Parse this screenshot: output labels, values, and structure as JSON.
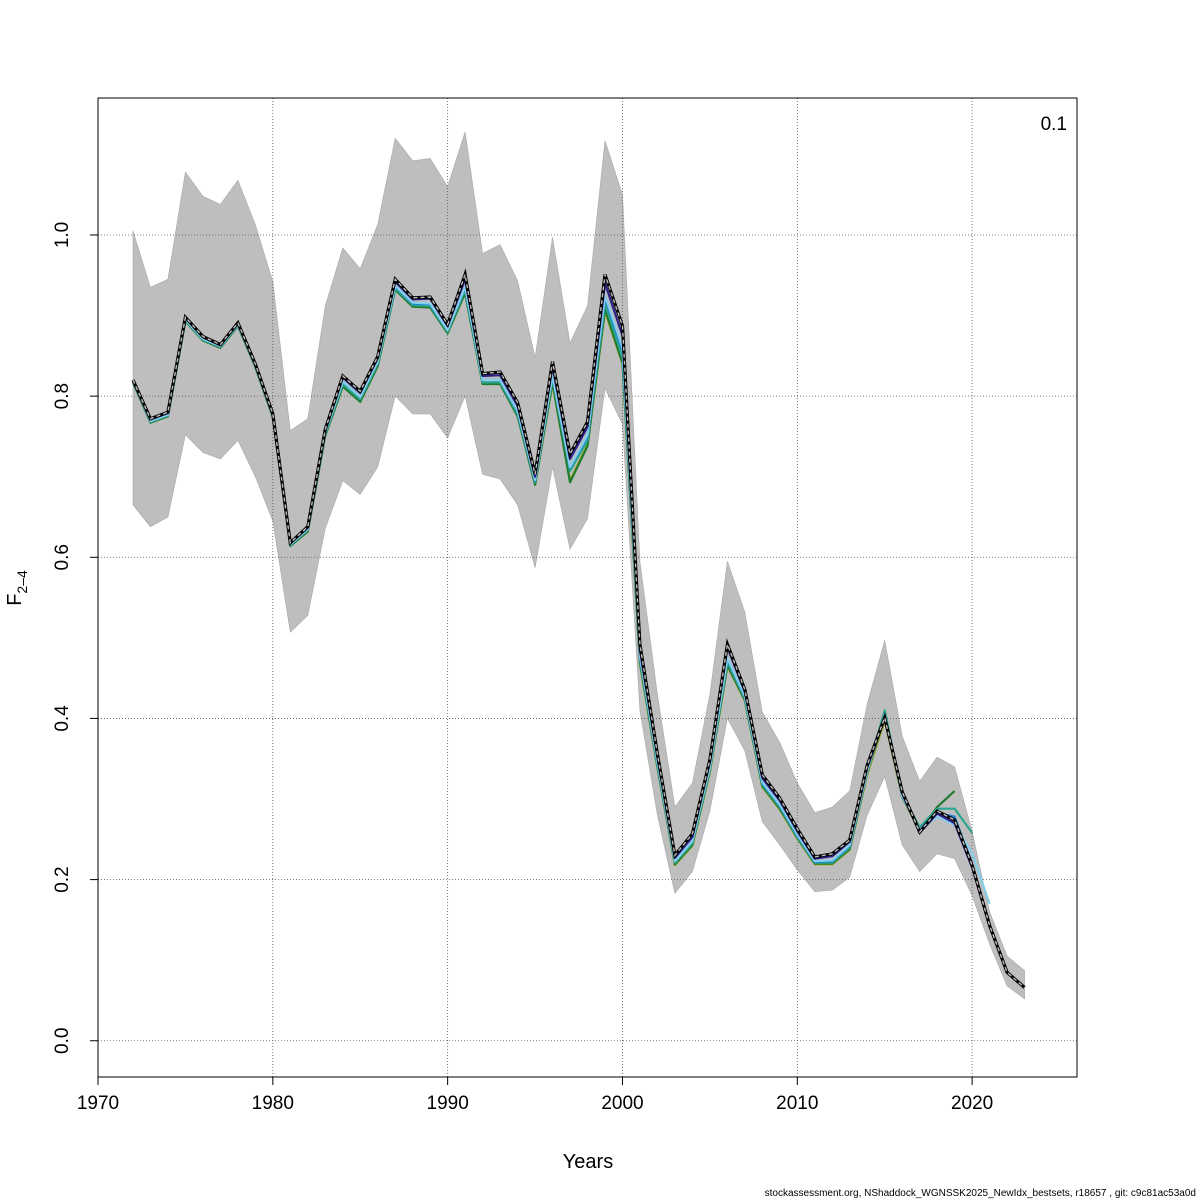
{
  "footer_text": "stockassessment.org, NShaddock_WGNSSK2025_NewIdx_bestsets, r18657 , git: c9c81ac53a0d",
  "chart_data": {
    "type": "line",
    "xlabel": "Years",
    "ylabel": {
      "main": "F",
      "subscript": "2–4"
    },
    "corner_label": "0.1",
    "xlim": [
      1970,
      2026
    ],
    "ylim": [
      -0.045,
      1.17
    ],
    "x_ticks": [
      1970,
      1980,
      1990,
      2000,
      2010,
      2020
    ],
    "y_ticks": [
      0.0,
      0.2,
      0.4,
      0.6,
      0.8,
      1.0
    ],
    "y_tick_labels": [
      "0.0",
      "0.2",
      "0.4",
      "0.6",
      "0.8",
      "1.0"
    ],
    "grid": true,
    "confidence_band": {
      "color": "#bebebe",
      "x": [
        1972,
        1973,
        1974,
        1975,
        1976,
        1977,
        1978,
        1979,
        1980,
        1981,
        1982,
        1983,
        1984,
        1985,
        1986,
        1987,
        1988,
        1989,
        1990,
        1991,
        1992,
        1993,
        1994,
        1995,
        1996,
        1997,
        1998,
        1999,
        2000,
        2001,
        2002,
        2003,
        2004,
        2005,
        2006,
        2007,
        2008,
        2009,
        2010,
        2011,
        2012,
        2013,
        2014,
        2015,
        2016,
        2017,
        2018,
        2019,
        2020,
        2021,
        2022,
        2023
      ],
      "lower": [
        0.665,
        0.638,
        0.65,
        0.752,
        0.73,
        0.722,
        0.745,
        0.7,
        0.645,
        0.507,
        0.528,
        0.636,
        0.695,
        0.678,
        0.712,
        0.8,
        0.778,
        0.778,
        0.748,
        0.8,
        0.703,
        0.697,
        0.665,
        0.587,
        0.712,
        0.61,
        0.648,
        0.81,
        0.765,
        0.41,
        0.28,
        0.183,
        0.21,
        0.285,
        0.4,
        0.36,
        0.272,
        0.243,
        0.212,
        0.185,
        0.187,
        0.203,
        0.28,
        0.328,
        0.243,
        0.21,
        0.232,
        0.226,
        0.18,
        0.12,
        0.068,
        0.052
      ],
      "upper": [
        1.005,
        0.935,
        0.945,
        1.078,
        1.048,
        1.038,
        1.068,
        1.013,
        0.942,
        0.757,
        0.772,
        0.912,
        0.984,
        0.958,
        1.013,
        1.12,
        1.092,
        1.095,
        1.06,
        1.128,
        0.977,
        0.988,
        0.943,
        0.848,
        0.997,
        0.866,
        0.912,
        1.117,
        1.05,
        0.595,
        0.43,
        0.29,
        0.32,
        0.43,
        0.595,
        0.532,
        0.408,
        0.37,
        0.32,
        0.283,
        0.29,
        0.31,
        0.418,
        0.497,
        0.378,
        0.322,
        0.352,
        0.34,
        0.26,
        0.16,
        0.105,
        0.087
      ]
    },
    "series": [
      {
        "color": "#000000",
        "dashed": true,
        "x": [
          1972,
          1973,
          1974,
          1975,
          1976,
          1977,
          1978,
          1979,
          1980,
          1981,
          1982,
          1983,
          1984,
          1985,
          1986,
          1987,
          1988,
          1989,
          1990,
          1991,
          1992,
          1993,
          1994,
          1995,
          1996,
          1997,
          1998,
          1999,
          2000,
          2001,
          2002,
          2003,
          2004,
          2005,
          2006,
          2007,
          2008,
          2009,
          2010,
          2011,
          2012,
          2013,
          2014,
          2015,
          2016,
          2017,
          2018,
          2019,
          2020,
          2021,
          2022,
          2023
        ],
        "values": [
          0.82,
          0.772,
          0.78,
          0.898,
          0.874,
          0.864,
          0.891,
          0.84,
          0.778,
          0.618,
          0.638,
          0.759,
          0.825,
          0.806,
          0.849,
          0.945,
          0.922,
          0.923,
          0.889,
          0.951,
          0.828,
          0.83,
          0.792,
          0.703,
          0.843,
          0.728,
          0.768,
          0.951,
          0.887,
          0.492,
          0.356,
          0.23,
          0.257,
          0.349,
          0.492,
          0.436,
          0.33,
          0.301,
          0.263,
          0.228,
          0.232,
          0.249,
          0.342,
          0.401,
          0.309,
          0.259,
          0.285,
          0.274,
          0.218,
          0.143,
          0.085,
          0.066
        ]
      },
      {
        "color": "#2b1f8a",
        "dashed": false,
        "x": [
          1972,
          1973,
          1974,
          1975,
          1976,
          1977,
          1978,
          1979,
          1980,
          1981,
          1982,
          1983,
          1984,
          1985,
          1986,
          1987,
          1988,
          1989,
          1990,
          1991,
          1992,
          1993,
          1994,
          1995,
          1996,
          1997,
          1998,
          1999,
          2000,
          2001,
          2002,
          2003,
          2004,
          2005,
          2006,
          2007,
          2008,
          2009,
          2010,
          2011,
          2012,
          2013,
          2014,
          2015,
          2016,
          2017,
          2018,
          2019,
          2020,
          2021,
          2022
        ],
        "values": [
          0.82,
          0.771,
          0.779,
          0.897,
          0.873,
          0.863,
          0.89,
          0.839,
          0.777,
          0.617,
          0.637,
          0.758,
          0.823,
          0.804,
          0.847,
          0.942,
          0.92,
          0.921,
          0.887,
          0.945,
          0.825,
          0.826,
          0.788,
          0.7,
          0.837,
          0.722,
          0.762,
          0.94,
          0.875,
          0.485,
          0.352,
          0.227,
          0.253,
          0.346,
          0.488,
          0.433,
          0.326,
          0.298,
          0.26,
          0.226,
          0.229,
          0.247,
          0.339,
          0.4,
          0.307,
          0.258,
          0.282,
          0.27,
          0.215,
          0.142,
          0.085
        ]
      },
      {
        "color": "#87ceeb",
        "dashed": false,
        "x": [
          1972,
          1973,
          1974,
          1975,
          1976,
          1977,
          1978,
          1979,
          1980,
          1981,
          1982,
          1983,
          1984,
          1985,
          1986,
          1987,
          1988,
          1989,
          1990,
          1991,
          1992,
          1993,
          1994,
          1995,
          1996,
          1997,
          1998,
          1999,
          2000,
          2001,
          2002,
          2003,
          2004,
          2005,
          2006,
          2007,
          2008,
          2009,
          2010,
          2011,
          2012,
          2013,
          2014,
          2015,
          2016,
          2017,
          2018,
          2019,
          2020,
          2021
        ],
        "values": [
          0.819,
          0.769,
          0.777,
          0.895,
          0.871,
          0.862,
          0.889,
          0.838,
          0.776,
          0.616,
          0.635,
          0.755,
          0.818,
          0.799,
          0.843,
          0.937,
          0.916,
          0.915,
          0.882,
          0.936,
          0.82,
          0.82,
          0.782,
          0.696,
          0.826,
          0.712,
          0.752,
          0.925,
          0.86,
          0.478,
          0.346,
          0.223,
          0.248,
          0.34,
          0.475,
          0.428,
          0.321,
          0.293,
          0.256,
          0.223,
          0.224,
          0.243,
          0.335,
          0.405,
          0.304,
          0.262,
          0.278,
          0.268,
          0.233,
          0.17
        ]
      },
      {
        "color": "#1e7fd8",
        "dashed": false,
        "x": [
          1972,
          1973,
          1974,
          1975,
          1976,
          1977,
          1978,
          1979,
          1980,
          1981,
          1982,
          1983,
          1984,
          1985,
          1986,
          1987,
          1988,
          1989,
          1990,
          1991,
          1992,
          1993,
          1994,
          1995,
          1996,
          1997,
          1998,
          1999,
          2000,
          2001,
          2002,
          2003,
          2004,
          2005,
          2006,
          2007,
          2008,
          2009,
          2010,
          2011,
          2012,
          2013,
          2014,
          2015,
          2016,
          2017,
          2018,
          2019,
          2020
        ],
        "values": [
          0.819,
          0.769,
          0.777,
          0.895,
          0.871,
          0.862,
          0.889,
          0.838,
          0.776,
          0.616,
          0.635,
          0.755,
          0.818,
          0.799,
          0.843,
          0.936,
          0.915,
          0.914,
          0.882,
          0.935,
          0.82,
          0.82,
          0.781,
          0.695,
          0.825,
          0.711,
          0.75,
          0.922,
          0.856,
          0.477,
          0.345,
          0.223,
          0.248,
          0.34,
          0.474,
          0.427,
          0.32,
          0.292,
          0.255,
          0.222,
          0.223,
          0.242,
          0.334,
          0.405,
          0.303,
          0.262,
          0.283,
          0.278,
          0.22
        ]
      },
      {
        "color": "#2ca58d",
        "dashed": false,
        "x": [
          1972,
          1973,
          1974,
          1975,
          1976,
          1977,
          1978,
          1979,
          1980,
          1981,
          1982,
          1983,
          1984,
          1985,
          1986,
          1987,
          1988,
          1989,
          1990,
          1991,
          1992,
          1993,
          1994,
          1995,
          1996,
          1997,
          1998,
          1999,
          2000,
          2001,
          2002,
          2003,
          2004,
          2005,
          2006,
          2007,
          2008,
          2009,
          2010,
          2011,
          2012,
          2013,
          2014,
          2015,
          2016,
          2017,
          2018,
          2019,
          2020
        ],
        "values": [
          0.818,
          0.768,
          0.776,
          0.894,
          0.87,
          0.861,
          0.888,
          0.837,
          0.775,
          0.615,
          0.634,
          0.753,
          0.815,
          0.796,
          0.84,
          0.934,
          0.913,
          0.912,
          0.88,
          0.932,
          0.817,
          0.817,
          0.778,
          0.693,
          0.822,
          0.707,
          0.745,
          0.915,
          0.848,
          0.474,
          0.342,
          0.221,
          0.245,
          0.337,
          0.47,
          0.425,
          0.318,
          0.29,
          0.253,
          0.221,
          0.221,
          0.24,
          0.335,
          0.41,
          0.305,
          0.265,
          0.288,
          0.288,
          0.258
        ]
      },
      {
        "color": "#1f7a2e",
        "dashed": false,
        "x": [
          1972,
          1973,
          1974,
          1975,
          1976,
          1977,
          1978,
          1979,
          1980,
          1981,
          1982,
          1983,
          1984,
          1985,
          1986,
          1987,
          1988,
          1989,
          1990,
          1991,
          1992,
          1993,
          1994,
          1995,
          1996,
          1997,
          1998,
          1999,
          2000,
          2001,
          2002,
          2003,
          2004,
          2005,
          2006,
          2007,
          2008,
          2009,
          2010,
          2011,
          2012,
          2013,
          2014,
          2015,
          2016,
          2017,
          2018,
          2019
        ],
        "values": [
          0.817,
          0.767,
          0.775,
          0.893,
          0.869,
          0.86,
          0.887,
          0.836,
          0.774,
          0.614,
          0.632,
          0.751,
          0.812,
          0.793,
          0.837,
          0.932,
          0.911,
          0.91,
          0.878,
          0.928,
          0.815,
          0.815,
          0.775,
          0.69,
          0.817,
          0.693,
          0.738,
          0.908,
          0.841,
          0.47,
          0.34,
          0.219,
          0.243,
          0.335,
          0.466,
          0.423,
          0.316,
          0.288,
          0.252,
          0.22,
          0.22,
          0.238,
          0.333,
          0.402,
          0.304,
          0.26,
          0.29,
          0.31
        ]
      },
      {
        "color": "#9aa41b",
        "dashed": false,
        "x": [
          1972,
          1973,
          1974,
          1975,
          1976,
          1977,
          1978,
          1979,
          1980,
          1981,
          1982,
          1983,
          1984,
          1985,
          1986,
          1987,
          1988,
          1989,
          1990,
          1991,
          1992,
          1993,
          1994,
          1995,
          1996,
          1997,
          1998,
          1999,
          2000,
          2001,
          2002,
          2003,
          2004,
          2005,
          2006,
          2007,
          2008,
          2009,
          2010,
          2011,
          2012,
          2013,
          2014,
          2015,
          2016,
          2017,
          2018
        ],
        "values": [
          0.818,
          0.769,
          0.777,
          0.895,
          0.871,
          0.862,
          0.89,
          0.838,
          0.776,
          0.616,
          0.636,
          0.756,
          0.816,
          0.797,
          0.84,
          0.935,
          0.914,
          0.913,
          0.88,
          0.93,
          0.816,
          0.816,
          0.776,
          0.69,
          0.815,
          0.695,
          0.74,
          0.905,
          0.84,
          0.468,
          0.339,
          0.218,
          0.242,
          0.334,
          0.465,
          0.422,
          0.315,
          0.287,
          0.251,
          0.219,
          0.219,
          0.237,
          0.33,
          0.398,
          0.302,
          0.26,
          0.29
        ]
      }
    ]
  }
}
